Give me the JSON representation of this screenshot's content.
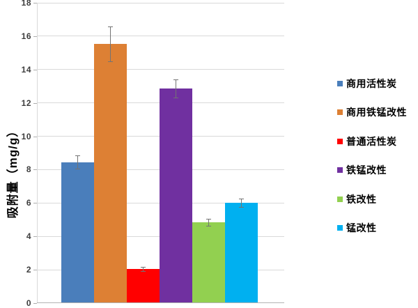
{
  "chart_data": {
    "type": "bar",
    "title": "",
    "xlabel": "",
    "ylabel": "吸附量（mg/g）",
    "ylim": [
      0,
      18
    ],
    "ytick_step": 2,
    "yticks": [
      0,
      2,
      4,
      6,
      8,
      10,
      12,
      14,
      16,
      18
    ],
    "grid": true,
    "legend_position": "right",
    "error_bars": true,
    "series": [
      {
        "name": "商用活性炭",
        "value": 8.45,
        "error": 0.4,
        "color": "#4A7EBB"
      },
      {
        "name": "商用铁锰改性",
        "value": 15.55,
        "error": 1.05,
        "color": "#DD8034"
      },
      {
        "name": "普通活性炭",
        "value": 2.05,
        "error": 0.12,
        "color": "#FF0000"
      },
      {
        "name": "铁锰改性",
        "value": 12.85,
        "error": 0.55,
        "color": "#7030A0"
      },
      {
        "name": "铁改性",
        "value": 4.85,
        "error": 0.2,
        "color": "#92D050"
      },
      {
        "name": "锰改性",
        "value": 6.0,
        "error": 0.25,
        "color": "#00B0F0"
      }
    ]
  },
  "colors": {
    "gridline": "#d9d9d9",
    "axis_x": "#b3b3b3",
    "axis_y": "#d9d9d9",
    "error_bar": "#737373",
    "tick_label": "#3d3d3d",
    "legend_text": "#000000",
    "background": "#ffffff"
  }
}
